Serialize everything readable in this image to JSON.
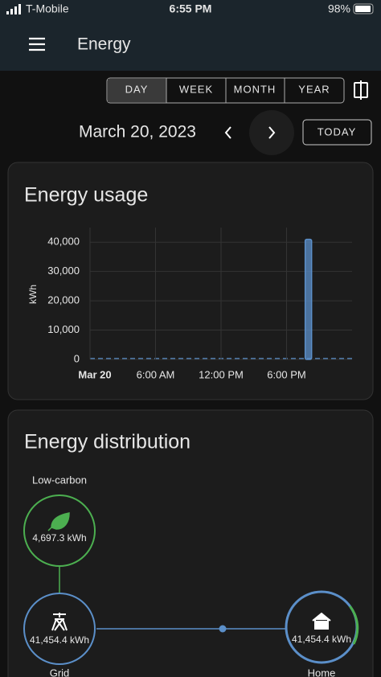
{
  "status_bar": {
    "carrier": "T-Mobile",
    "time": "6:55 PM",
    "battery": "98%"
  },
  "header": {
    "title": "Energy"
  },
  "period_tabs": [
    "DAY",
    "WEEK",
    "MONTH",
    "YEAR"
  ],
  "date_nav": {
    "date": "March 20, 2023",
    "today_button": "TODAY"
  },
  "chart_data": {
    "type": "bar",
    "title": "Energy usage",
    "y_label": "kWh",
    "x": [
      0,
      1,
      2,
      3,
      4,
      5,
      6,
      7,
      8,
      9,
      10,
      11,
      12,
      13,
      14,
      15,
      16,
      17,
      18,
      19,
      20,
      21,
      22,
      23
    ],
    "values": [
      0,
      0,
      0,
      0,
      0,
      0,
      0,
      0,
      0,
      0,
      0,
      0,
      0,
      0,
      0,
      0,
      0,
      0,
      0,
      0,
      41000,
      0,
      0,
      0
    ],
    "color": "#5b8fc9",
    "xlim": [
      0,
      24
    ],
    "xticks": [
      {
        "value": 0,
        "label": "Mar 20"
      },
      {
        "value": 6,
        "label": "6:00 AM"
      },
      {
        "value": 12,
        "label": "12:00 PM"
      },
      {
        "value": 18,
        "label": "6:00 PM"
      }
    ],
    "ylim": [
      0,
      45000
    ],
    "yticks": [
      0,
      {
        "value": 10000,
        "label": "10,000"
      },
      {
        "value": 20000,
        "label": "20,000"
      },
      {
        "value": 30000,
        "label": "30,000"
      },
      {
        "value": 40000,
        "label": "40,000"
      }
    ],
    "grid": true
  },
  "energy_distribution": {
    "title": "Energy distribution",
    "nodes": [
      {
        "label": "Low-carbon",
        "value": "4,697.3 kWh"
      },
      {
        "label": "Grid",
        "value": "41,454.4 kWh"
      },
      {
        "label": "Home",
        "value": "41,454.4 kWh"
      }
    ]
  }
}
